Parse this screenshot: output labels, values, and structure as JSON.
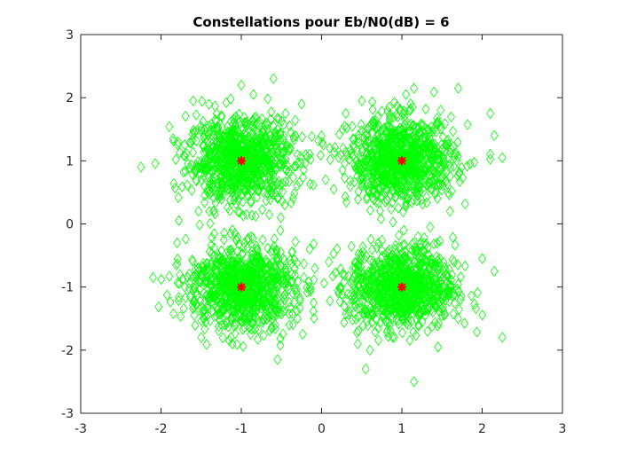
{
  "chart_data": {
    "type": "scatter",
    "title": "Constellations pour Eb/N0(dB) = 6",
    "xlabel": "",
    "ylabel": "",
    "xlim": [
      -3,
      3
    ],
    "ylim": [
      -3,
      3
    ],
    "x_ticks": [
      "-3",
      "-2",
      "-1",
      "0",
      "1",
      "2",
      "3"
    ],
    "y_ticks": [
      "-3",
      "-2",
      "-1",
      "0",
      "1",
      "2",
      "3"
    ],
    "grid": false,
    "box": true,
    "series": [
      {
        "role": "received-symbols",
        "marker": "diamond",
        "color": "#00ff00",
        "noise_sigma": 0.33,
        "points_per_symbol": 900,
        "outliers": [
          [
            -2.25,
            0.9
          ],
          [
            -2.1,
            -0.85
          ],
          [
            -1.6,
            1.95
          ],
          [
            -1.5,
            -1.8
          ],
          [
            -1.15,
            -1.85
          ],
          [
            -1.0,
            2.2
          ],
          [
            -0.85,
            2.05
          ],
          [
            -0.6,
            2.3
          ],
          [
            -0.55,
            -2.15
          ],
          [
            -0.25,
            1.9
          ],
          [
            -0.3,
            -1.5
          ],
          [
            -0.1,
            -1.25
          ],
          [
            0.1,
            1.2
          ],
          [
            0.3,
            1.75
          ],
          [
            0.5,
            1.95
          ],
          [
            0.45,
            -1.9
          ],
          [
            0.6,
            -2.0
          ],
          [
            0.55,
            -2.3
          ],
          [
            0.85,
            1.65
          ],
          [
            1.05,
            2.05
          ],
          [
            1.15,
            2.15
          ],
          [
            1.15,
            -2.5
          ],
          [
            1.45,
            -1.95
          ],
          [
            1.7,
            2.15
          ],
          [
            2.1,
            1.75
          ],
          [
            2.15,
            1.4
          ],
          [
            2.25,
            1.05
          ],
          [
            2.0,
            -0.55
          ],
          [
            2.15,
            -0.75
          ],
          [
            2.25,
            -1.8
          ],
          [
            1.7,
            -1.5
          ],
          [
            -1.85,
            1.35
          ],
          [
            -1.8,
            -0.3
          ],
          [
            -0.45,
            1.75
          ],
          [
            0.15,
            0.55
          ],
          [
            -0.15,
            -0.4
          ],
          [
            1.35,
            -0.05
          ],
          [
            -1.35,
            0.2
          ],
          [
            0.05,
            0.7
          ],
          [
            1.85,
            0.95
          ]
        ]
      },
      {
        "role": "ideal-symbols",
        "marker": "star",
        "color": "#ff0000",
        "points": [
          [
            -1,
            1
          ],
          [
            1,
            1
          ],
          [
            -1,
            -1
          ],
          [
            1,
            -1
          ]
        ]
      }
    ]
  }
}
